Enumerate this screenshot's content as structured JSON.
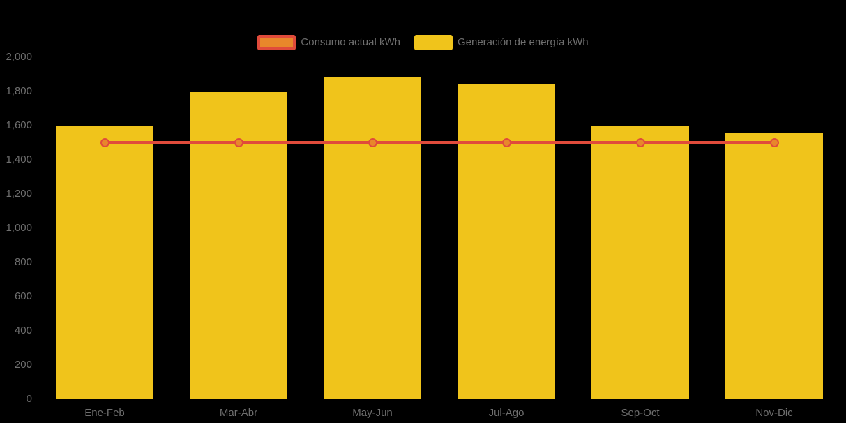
{
  "chart_data": {
    "type": "bar",
    "subtype": "bar-with-line-overlay",
    "title": "",
    "xlabel": "",
    "ylabel": "",
    "categories": [
      "Ene-Feb",
      "Mar-Abr",
      "May-Jun",
      "Jul-Ago",
      "Sep-Oct",
      "Nov-Dic"
    ],
    "series": [
      {
        "name": "Generación de energía kWh",
        "type": "bar",
        "values": [
          1600,
          1795,
          1880,
          1840,
          1600,
          1560
        ],
        "color": "#f0c41b"
      },
      {
        "name": "Consumo actual kWh",
        "type": "line",
        "values": [
          1500,
          1500,
          1500,
          1500,
          1500,
          1500
        ],
        "line_color": "#e04b3b",
        "marker_fill": "#e8872b",
        "marker_stroke": "#e04b3b"
      }
    ],
    "legend": {
      "position": "top-center",
      "items": [
        {
          "label": "Consumo actual kWh",
          "swatch": "line"
        },
        {
          "label": "Generación de energía kWh",
          "swatch": "bar"
        }
      ]
    },
    "ylim": [
      0,
      2000
    ],
    "y_tick_values": [
      0,
      200,
      400,
      600,
      800,
      1000,
      1200,
      1400,
      1600,
      1800,
      2000
    ],
    "y_tick_labels": [
      "0",
      "200",
      "400",
      "600",
      "800",
      "1,000",
      "1,200",
      "1,400",
      "1,600",
      "1,800",
      "2,000"
    ],
    "grid": false,
    "background_color": "#000000",
    "text_color": "#6e6e6e"
  }
}
